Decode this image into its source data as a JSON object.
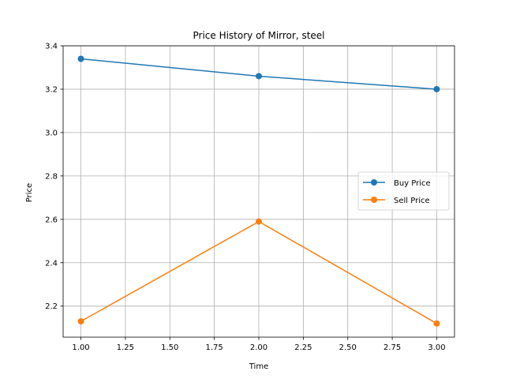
{
  "chart_data": {
    "type": "line",
    "title": "Price History of Mirror, steel",
    "xlabel": "Time",
    "ylabel": "Price",
    "x": [
      1.0,
      2.0,
      3.0
    ],
    "xlim": [
      0.9,
      3.1
    ],
    "ylim": [
      2.057,
      3.4
    ],
    "xticks": [
      1.0,
      1.25,
      1.5,
      1.75,
      2.0,
      2.25,
      2.5,
      2.75,
      3.0
    ],
    "xtick_labels": [
      "1.00",
      "1.25",
      "1.50",
      "1.75",
      "2.00",
      "2.25",
      "2.50",
      "2.75",
      "3.00"
    ],
    "yticks": [
      2.2,
      2.4,
      2.6,
      2.8,
      3.0,
      3.2,
      3.4
    ],
    "ytick_labels": [
      "2.2",
      "2.4",
      "2.6",
      "2.8",
      "3.0",
      "3.2",
      "3.4"
    ],
    "grid": true,
    "legend_position": "center-right",
    "series": [
      {
        "name": "Buy Price",
        "color": "#1f77b4",
        "values": [
          3.34,
          3.26,
          3.2
        ]
      },
      {
        "name": "Sell Price",
        "color": "#ff7f0e",
        "values": [
          2.13,
          2.59,
          2.12
        ]
      }
    ]
  }
}
